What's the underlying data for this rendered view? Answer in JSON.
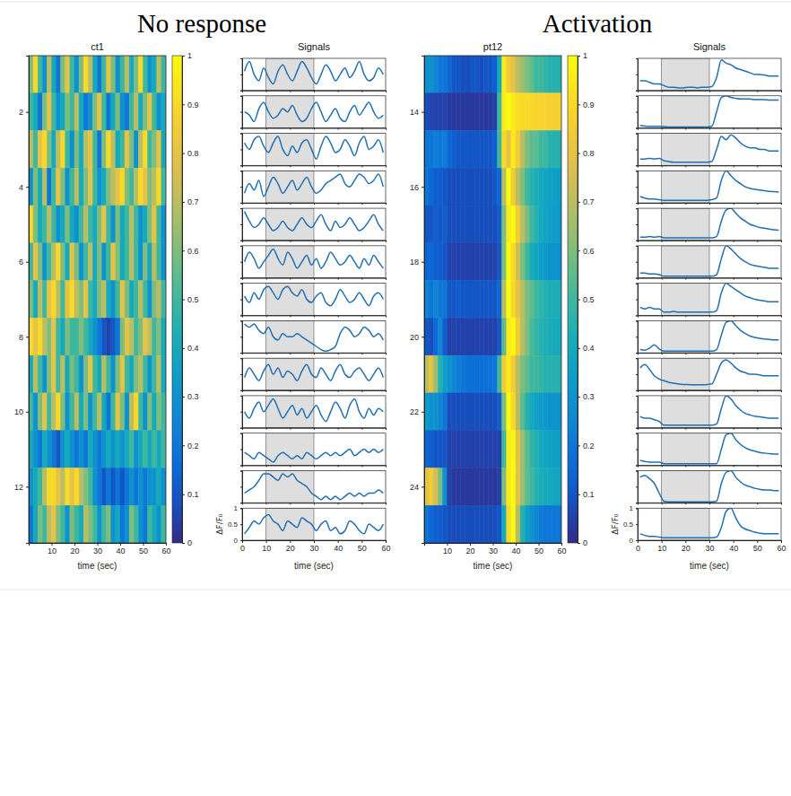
{
  "chart_data": [
    {
      "type": "heatmap",
      "heading": "No response",
      "title": "ct1",
      "signals_title": "Signals",
      "xlabel": "time (sec)",
      "signals_ylabel": "ΔF/F₀",
      "x": [
        1,
        3,
        5,
        7,
        9,
        11,
        13,
        15,
        17,
        19,
        21,
        23,
        25,
        27,
        29,
        31,
        33,
        35,
        37,
        39,
        41,
        43,
        45,
        47,
        49,
        51,
        53,
        55,
        57,
        59
      ],
      "xlim": [
        0,
        60
      ],
      "xticks": [
        10,
        20,
        30,
        40,
        50,
        60
      ],
      "signals_xticks": [
        0,
        10,
        20,
        30,
        40,
        50,
        60
      ],
      "rows": [
        1,
        2,
        3,
        4,
        5,
        6,
        7,
        8,
        9,
        10,
        11,
        12,
        13
      ],
      "ylim": [
        0.5,
        13.5
      ],
      "yticks": [
        2,
        4,
        6,
        8,
        10,
        12
      ],
      "signals_ylim": [
        0,
        1
      ],
      "signals_yticks": [
        0,
        0.5,
        1
      ],
      "stimulus_window": [
        10,
        30
      ],
      "colorbar": {
        "range": [
          0,
          1
        ],
        "ticks": [
          0,
          0.1,
          0.2,
          0.3,
          0.4,
          0.5,
          0.6,
          0.7,
          0.8,
          0.9,
          1
        ]
      },
      "cells": [
        [
          0.6,
          0.9,
          0.5,
          0.3,
          0.7,
          0.4,
          0.2,
          0.6,
          0.8,
          0.5,
          0.3,
          0.6,
          0.9,
          0.7,
          0.4,
          0.2,
          0.5,
          0.8,
          0.6,
          0.3,
          0.5,
          0.7,
          0.4,
          0.6,
          0.9,
          0.5,
          0.3,
          0.4,
          0.7,
          0.5
        ],
        [
          0.5,
          0.4,
          0.2,
          0.6,
          0.8,
          0.5,
          0.3,
          0.4,
          0.6,
          0.5,
          0.7,
          0.4,
          0.2,
          0.3,
          0.6,
          0.8,
          0.5,
          0.2,
          0.4,
          0.6,
          0.3,
          0.2,
          0.5,
          0.7,
          0.4,
          0.6,
          0.8,
          0.5,
          0.3,
          0.4
        ],
        [
          0.7,
          0.5,
          0.8,
          0.9,
          0.6,
          0.4,
          0.7,
          0.9,
          0.5,
          0.3,
          0.6,
          0.4,
          0.7,
          0.8,
          0.5,
          0.2,
          0.6,
          0.9,
          0.7,
          0.4,
          0.5,
          0.8,
          0.6,
          0.3,
          0.7,
          0.9,
          0.5,
          0.6,
          0.8,
          0.4
        ],
        [
          0.3,
          0.6,
          0.4,
          0.7,
          0.2,
          0.5,
          0.8,
          0.6,
          0.3,
          0.5,
          0.7,
          0.4,
          0.6,
          0.8,
          0.5,
          0.3,
          0.4,
          0.6,
          0.7,
          0.8,
          0.9,
          0.6,
          0.5,
          0.7,
          0.9,
          0.8,
          0.6,
          0.7,
          0.9,
          0.5
        ],
        [
          0.9,
          0.6,
          0.4,
          0.5,
          0.7,
          0.5,
          0.3,
          0.4,
          0.6,
          0.4,
          0.3,
          0.5,
          0.7,
          0.5,
          0.4,
          0.6,
          0.8,
          0.5,
          0.3,
          0.6,
          0.4,
          0.5,
          0.7,
          0.5,
          0.3,
          0.4,
          0.6,
          0.8,
          0.5,
          0.3
        ],
        [
          0.5,
          0.8,
          0.6,
          0.3,
          0.5,
          0.7,
          0.9,
          0.6,
          0.4,
          0.8,
          0.6,
          0.3,
          0.5,
          0.7,
          0.4,
          0.6,
          0.3,
          0.5,
          0.8,
          0.6,
          0.4,
          0.5,
          0.7,
          0.5,
          0.3,
          0.6,
          0.4,
          0.7,
          0.5,
          0.3
        ],
        [
          0.6,
          0.4,
          0.7,
          0.5,
          0.8,
          0.9,
          0.7,
          0.5,
          0.8,
          0.9,
          0.7,
          0.6,
          0.8,
          0.5,
          0.4,
          0.6,
          0.7,
          0.4,
          0.3,
          0.5,
          0.8,
          0.6,
          0.4,
          0.5,
          0.7,
          0.5,
          0.3,
          0.6,
          0.7,
          0.5
        ],
        [
          0.9,
          0.8,
          0.9,
          0.7,
          0.6,
          0.8,
          0.5,
          0.4,
          0.6,
          0.5,
          0.5,
          0.6,
          0.5,
          0.4,
          0.3,
          0.2,
          0.1,
          0.05,
          0.1,
          0.2,
          0.6,
          0.8,
          0.7,
          0.5,
          0.6,
          0.8,
          0.7,
          0.5,
          0.6,
          0.4
        ],
        [
          0.4,
          0.7,
          0.5,
          0.3,
          0.6,
          0.8,
          0.5,
          0.7,
          0.4,
          0.6,
          0.5,
          0.3,
          0.6,
          0.8,
          0.5,
          0.4,
          0.7,
          0.5,
          0.3,
          0.6,
          0.8,
          0.5,
          0.4,
          0.6,
          0.7,
          0.5,
          0.3,
          0.5,
          0.7,
          0.4
        ],
        [
          0.5,
          0.3,
          0.6,
          0.8,
          0.5,
          0.7,
          0.9,
          0.6,
          0.3,
          0.5,
          0.7,
          0.4,
          0.6,
          0.3,
          0.5,
          0.7,
          0.4,
          0.2,
          0.5,
          0.8,
          0.6,
          0.3,
          0.7,
          0.9,
          0.5,
          0.3,
          0.6,
          0.4,
          0.6,
          0.5
        ],
        [
          0.4,
          0.3,
          0.2,
          0.4,
          0.3,
          0.2,
          0.1,
          0.3,
          0.4,
          0.3,
          0.2,
          0.3,
          0.2,
          0.4,
          0.3,
          0.2,
          0.3,
          0.4,
          0.3,
          0.4,
          0.3,
          0.4,
          0.5,
          0.3,
          0.4,
          0.5,
          0.4,
          0.5,
          0.4,
          0.5
        ],
        [
          0.3,
          0.4,
          0.5,
          0.7,
          0.9,
          0.9,
          0.8,
          0.7,
          0.9,
          0.8,
          0.9,
          0.7,
          0.6,
          0.5,
          0.3,
          0.2,
          0.1,
          0.2,
          0.1,
          0.2,
          0.1,
          0.2,
          0.3,
          0.2,
          0.3,
          0.2,
          0.3,
          0.3,
          0.4,
          0.3
        ],
        [
          0.2,
          0.4,
          0.6,
          0.5,
          0.7,
          0.8,
          0.6,
          0.5,
          0.3,
          0.6,
          0.5,
          0.4,
          0.7,
          0.6,
          0.5,
          0.3,
          0.5,
          0.6,
          0.3,
          0.4,
          0.2,
          0.3,
          0.6,
          0.5,
          0.3,
          0.2,
          0.5,
          0.4,
          0.3,
          0.5
        ]
      ]
    },
    {
      "type": "heatmap",
      "heading": "Activation",
      "title": "pt12",
      "signals_title": "Signals",
      "xlabel": "time (sec)",
      "signals_ylabel": "ΔF/F₀",
      "x": [
        1,
        3,
        5,
        7,
        9,
        11,
        13,
        15,
        17,
        19,
        21,
        23,
        25,
        27,
        29,
        31,
        33,
        35,
        37,
        39,
        41,
        43,
        45,
        47,
        49,
        51,
        53,
        55,
        57,
        59
      ],
      "xlim": [
        0,
        60
      ],
      "xticks": [
        10,
        20,
        30,
        40,
        50,
        60
      ],
      "signals_xticks": [
        0,
        10,
        20,
        30,
        40,
        50,
        60
      ],
      "rows": [
        13,
        14,
        15,
        16,
        17,
        18,
        19,
        20,
        21,
        22,
        23,
        24,
        25
      ],
      "ylim": [
        12.5,
        25.5
      ],
      "yticks": [
        14,
        16,
        18,
        20,
        22,
        24
      ],
      "signals_ylim": [
        0,
        1
      ],
      "signals_yticks": [
        0,
        0.5,
        1
      ],
      "stimulus_window": [
        10,
        30
      ],
      "colorbar": {
        "range": [
          0,
          1
        ],
        "ticks": [
          0,
          0.1,
          0.2,
          0.3,
          0.4,
          0.5,
          0.6,
          0.7,
          0.8,
          0.9,
          1
        ]
      },
      "cells": [
        [
          0.3,
          0.3,
          0.25,
          0.2,
          0.2,
          0.15,
          0.1,
          0.1,
          0.08,
          0.08,
          0.1,
          0.1,
          0.08,
          0.1,
          0.1,
          0.12,
          0.4,
          0.95,
          0.85,
          0.8,
          0.7,
          0.65,
          0.6,
          0.55,
          0.5,
          0.5,
          0.48,
          0.45,
          0.45,
          0.45
        ],
        [
          0.08,
          0.06,
          0.05,
          0.05,
          0.05,
          0.04,
          0.03,
          0.03,
          0.03,
          0.03,
          0.03,
          0.03,
          0.03,
          0.03,
          0.03,
          0.05,
          0.5,
          0.95,
          1.0,
          0.95,
          0.92,
          0.9,
          0.9,
          0.9,
          0.88,
          0.88,
          0.88,
          0.87,
          0.87,
          0.87
        ],
        [
          0.2,
          0.2,
          0.22,
          0.2,
          0.22,
          0.15,
          0.12,
          0.1,
          0.1,
          0.1,
          0.1,
          0.1,
          0.1,
          0.1,
          0.1,
          0.12,
          0.5,
          0.9,
          0.8,
          0.95,
          0.85,
          0.7,
          0.6,
          0.55,
          0.55,
          0.5,
          0.5,
          0.45,
          0.45,
          0.45
        ],
        [
          0.2,
          0.15,
          0.12,
          0.12,
          0.1,
          0.08,
          0.08,
          0.08,
          0.08,
          0.08,
          0.08,
          0.08,
          0.08,
          0.08,
          0.08,
          0.1,
          0.15,
          0.7,
          1.0,
          0.85,
          0.7,
          0.6,
          0.5,
          0.45,
          0.42,
          0.4,
          0.38,
          0.36,
          0.35,
          0.34
        ],
        [
          0.1,
          0.1,
          0.12,
          0.1,
          0.12,
          0.08,
          0.08,
          0.08,
          0.08,
          0.08,
          0.08,
          0.08,
          0.08,
          0.08,
          0.08,
          0.08,
          0.12,
          0.6,
          0.95,
          1.0,
          0.85,
          0.7,
          0.6,
          0.5,
          0.45,
          0.4,
          0.38,
          0.35,
          0.33,
          0.32
        ],
        [
          0.15,
          0.15,
          0.12,
          0.12,
          0.1,
          0.05,
          0.05,
          0.05,
          0.05,
          0.05,
          0.05,
          0.05,
          0.05,
          0.05,
          0.05,
          0.05,
          0.1,
          0.6,
          1.0,
          0.9,
          0.75,
          0.6,
          0.5,
          0.42,
          0.38,
          0.35,
          0.33,
          0.3,
          0.3,
          0.3
        ],
        [
          0.25,
          0.2,
          0.25,
          0.2,
          0.2,
          0.1,
          0.1,
          0.12,
          0.1,
          0.1,
          0.1,
          0.1,
          0.1,
          0.1,
          0.1,
          0.1,
          0.15,
          0.7,
          1.0,
          0.9,
          0.8,
          0.7,
          0.6,
          0.55,
          0.5,
          0.47,
          0.45,
          0.42,
          0.42,
          0.42
        ],
        [
          0.1,
          0.08,
          0.15,
          0.25,
          0.12,
          0.05,
          0.05,
          0.05,
          0.05,
          0.05,
          0.05,
          0.05,
          0.05,
          0.05,
          0.05,
          0.05,
          0.1,
          0.55,
          0.95,
          1.0,
          0.85,
          0.7,
          0.6,
          0.52,
          0.48,
          0.45,
          0.43,
          0.42,
          0.4,
          0.4
        ],
        [
          0.7,
          0.8,
          0.65,
          0.45,
          0.35,
          0.3,
          0.25,
          0.22,
          0.2,
          0.18,
          0.18,
          0.17,
          0.17,
          0.17,
          0.18,
          0.2,
          0.5,
          0.85,
          0.95,
          0.85,
          0.7,
          0.6,
          0.55,
          0.5,
          0.5,
          0.48,
          0.45,
          0.45,
          0.45,
          0.45
        ],
        [
          0.35,
          0.3,
          0.3,
          0.25,
          0.2,
          0.08,
          0.08,
          0.08,
          0.08,
          0.08,
          0.08,
          0.08,
          0.08,
          0.08,
          0.08,
          0.08,
          0.12,
          0.6,
          1.0,
          0.9,
          0.7,
          0.55,
          0.45,
          0.4,
          0.36,
          0.34,
          0.32,
          0.3,
          0.3,
          0.3
        ],
        [
          0.15,
          0.12,
          0.1,
          0.1,
          0.1,
          0.05,
          0.05,
          0.05,
          0.05,
          0.05,
          0.05,
          0.05,
          0.05,
          0.05,
          0.05,
          0.05,
          0.05,
          0.5,
          0.95,
          1.0,
          0.8,
          0.65,
          0.55,
          0.48,
          0.44,
          0.4,
          0.38,
          0.36,
          0.35,
          0.35
        ],
        [
          0.8,
          0.85,
          0.75,
          0.6,
          0.3,
          0.05,
          0.03,
          0.03,
          0.03,
          0.03,
          0.03,
          0.03,
          0.03,
          0.03,
          0.03,
          0.03,
          0.05,
          0.6,
          0.95,
          1.0,
          0.8,
          0.65,
          0.55,
          0.5,
          0.45,
          0.42,
          0.4,
          0.4,
          0.38,
          0.38
        ],
        [
          0.2,
          0.15,
          0.12,
          0.12,
          0.1,
          0.08,
          0.08,
          0.08,
          0.08,
          0.08,
          0.08,
          0.08,
          0.08,
          0.08,
          0.08,
          0.08,
          0.1,
          0.4,
          0.9,
          1.0,
          0.7,
          0.45,
          0.35,
          0.3,
          0.25,
          0.22,
          0.2,
          0.2,
          0.2,
          0.2
        ]
      ]
    }
  ]
}
